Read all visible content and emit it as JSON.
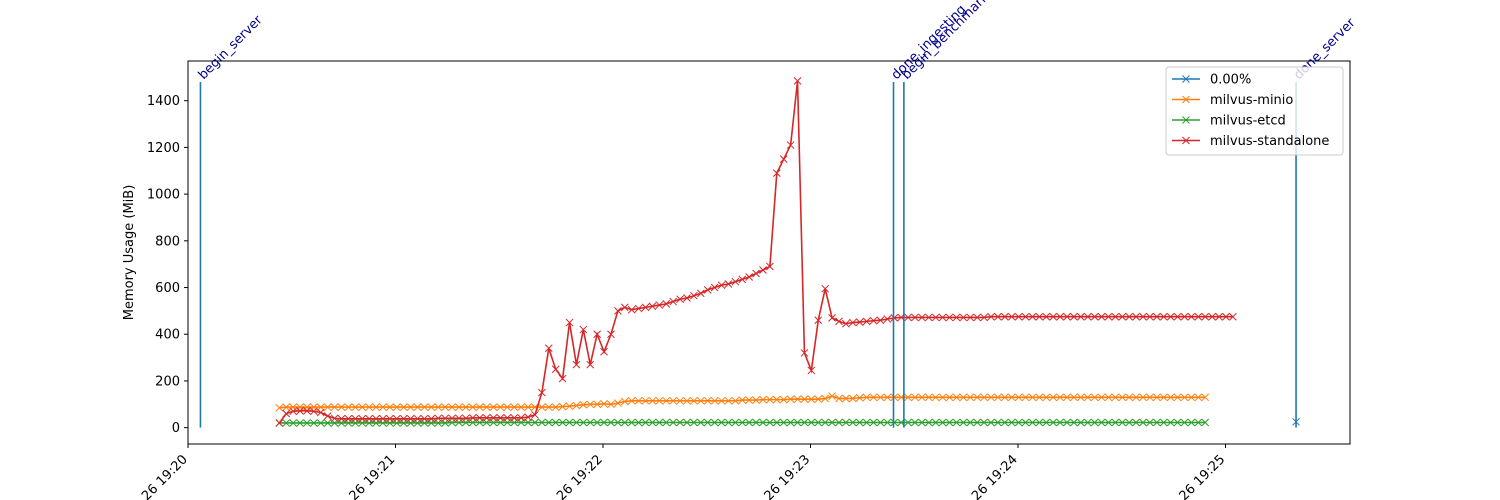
{
  "chart_data": {
    "type": "line",
    "title": "",
    "xlabel": "",
    "ylabel": "Memory Usage (MiB)",
    "ylim": [
      -70,
      1570
    ],
    "xlim_minutes": [
      0,
      5.6
    ],
    "grid": false,
    "legend_position": "top-right",
    "x_ticks": [
      {
        "label": "26 19:20",
        "value": 0
      },
      {
        "label": "26 19:21",
        "value": 1
      },
      {
        "label": "26 19:22",
        "value": 2
      },
      {
        "label": "26 19:23",
        "value": 3
      },
      {
        "label": "26 19:24",
        "value": 4
      },
      {
        "label": "26 19:25",
        "value": 5
      }
    ],
    "y_ticks": [
      0,
      200,
      400,
      600,
      800,
      1000,
      1200,
      1400
    ],
    "events": [
      {
        "label": "begin_server",
        "x": 0.06,
        "color": "#1f77b4"
      },
      {
        "label": "done_ingesting",
        "x": 3.4,
        "color": "#1f77b4"
      },
      {
        "label": "begin_benchmark",
        "x": 3.45,
        "color": "#1f77b4"
      },
      {
        "label": "done_server",
        "x": 5.34,
        "color": "#1f77b4"
      }
    ],
    "event_line_top": 1480,
    "series": [
      {
        "name": "0.00%",
        "color": "#1f77b4",
        "points": [
          [
            5.34,
            25
          ]
        ]
      },
      {
        "name": "milvus-minio",
        "color": "#ff7f0e",
        "x_start": 0.44,
        "x_step": 0.0333,
        "values": [
          85,
          88,
          88,
          88,
          88,
          88,
          88,
          88,
          88,
          88,
          88,
          88,
          88,
          88,
          88,
          88,
          88,
          88,
          88,
          88,
          88,
          88,
          88,
          88,
          88,
          88,
          88,
          88,
          88,
          88,
          88,
          88,
          88,
          88,
          88,
          88,
          88,
          88,
          88,
          88,
          88,
          90,
          92,
          95,
          98,
          100,
          100,
          102,
          100,
          105,
          112,
          115,
          115,
          115,
          115,
          115,
          115,
          115,
          115,
          115,
          115,
          115,
          115,
          115,
          115,
          115,
          115,
          118,
          118,
          118,
          120,
          120,
          120,
          120,
          122,
          122,
          122,
          122,
          122,
          125,
          135,
          125,
          125,
          125,
          128,
          130,
          130,
          130,
          130,
          130,
          130,
          130,
          130,
          130,
          130,
          130,
          130,
          130,
          130,
          130,
          130,
          130,
          130,
          130,
          130,
          130,
          130,
          130,
          130,
          130,
          130,
          130,
          130,
          130,
          130,
          130,
          130,
          130,
          130,
          130,
          130,
          130,
          130,
          130,
          130,
          130,
          130,
          130,
          130,
          130,
          130,
          130,
          130,
          130,
          130
        ]
      },
      {
        "name": "milvus-etcd",
        "color": "#2ca02c",
        "x_start": 0.44,
        "x_step": 0.0333,
        "values": [
          20,
          20,
          20,
          20,
          20,
          20,
          20,
          20,
          20,
          20,
          20,
          20,
          20,
          20,
          20,
          20,
          20,
          20,
          20,
          20,
          20,
          20,
          20,
          20,
          20,
          22,
          22,
          22,
          22,
          22,
          22,
          22,
          22,
          22,
          22,
          22,
          22,
          22,
          22,
          22,
          22,
          22,
          22,
          22,
          22,
          22,
          22,
          22,
          22,
          22,
          22,
          22,
          22,
          22,
          22,
          22,
          22,
          22,
          22,
          22,
          22,
          22,
          22,
          22,
          22,
          22,
          22,
          22,
          22,
          22,
          22,
          22,
          22,
          22,
          22,
          22,
          22,
          22,
          22,
          22,
          22,
          22,
          22,
          22,
          22,
          22,
          22,
          22,
          22,
          22,
          22,
          22,
          22,
          22,
          22,
          22,
          22,
          22,
          22,
          22,
          22,
          22,
          22,
          22,
          22,
          22,
          22,
          22,
          22,
          22,
          22,
          22,
          22,
          22,
          22,
          22,
          22,
          22,
          22,
          22,
          22,
          22,
          22,
          22,
          22,
          22,
          22,
          22,
          22,
          22,
          22,
          22,
          22,
          22,
          22
        ]
      },
      {
        "name": "milvus-standalone",
        "color": "#d62728",
        "x_start": 0.44,
        "x_step": 0.0333,
        "values": [
          20,
          60,
          70,
          72,
          72,
          70,
          65,
          50,
          40,
          38,
          38,
          38,
          38,
          38,
          38,
          38,
          38,
          38,
          38,
          38,
          38,
          38,
          38,
          40,
          40,
          40,
          40,
          40,
          42,
          42,
          42,
          42,
          42,
          42,
          42,
          42,
          45,
          55,
          150,
          340,
          250,
          210,
          450,
          270,
          420,
          270,
          400,
          325,
          400,
          500,
          515,
          505,
          510,
          515,
          520,
          525,
          530,
          540,
          550,
          555,
          565,
          575,
          590,
          600,
          610,
          615,
          625,
          635,
          645,
          660,
          675,
          690,
          1090,
          1150,
          1210,
          1485,
          320,
          245,
          460,
          595,
          470,
          455,
          445,
          450,
          452,
          455,
          458,
          460,
          465,
          470,
          472,
          472,
          472,
          472,
          472,
          472,
          472,
          472,
          472,
          472,
          472,
          472,
          472,
          475,
          475,
          475,
          475,
          475,
          475,
          475,
          475,
          475,
          475,
          475,
          475,
          475,
          475,
          475,
          475,
          475,
          475,
          475,
          475,
          475,
          475,
          475,
          475,
          475,
          475,
          475,
          475,
          475,
          475,
          475,
          475,
          475,
          475,
          475,
          475
        ]
      }
    ]
  }
}
